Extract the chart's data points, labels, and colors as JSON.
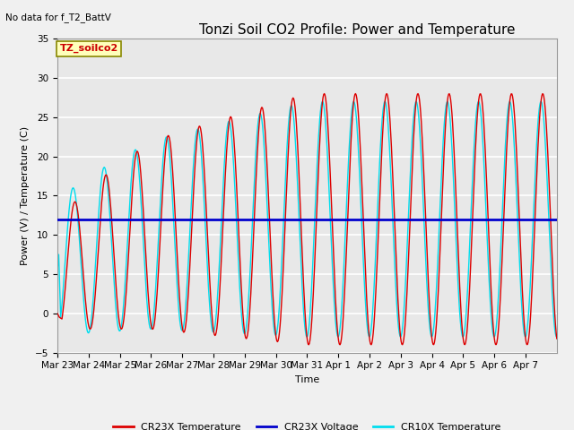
{
  "title": "Tonzi Soil CO2 Profile: Power and Temperature",
  "subtitle": "No data for f_T2_BattV",
  "ylabel": "Power (V) / Temperature (C)",
  "xlabel": "Time",
  "ylim": [
    -5,
    35
  ],
  "voltage_value": 12.0,
  "legend_entries": [
    "CR23X Temperature",
    "CR23X Voltage",
    "CR10X Temperature"
  ],
  "x_tick_labels": [
    "Mar 23",
    "Mar 24",
    "Mar 25",
    "Mar 26",
    "Mar 27",
    "Mar 28",
    "Mar 29",
    "Mar 30",
    "Mar 31",
    "Apr 1",
    "Apr 2",
    "Apr 3",
    "Apr 4",
    "Apr 5",
    "Apr 6",
    "Apr 7"
  ],
  "box_label": "TZ_soilco2",
  "bg_color": "#e8e8e8",
  "fig_bg_color": "#f0f0f0",
  "grid_color": "#ffffff",
  "title_fontsize": 11,
  "label_fontsize": 8,
  "tick_fontsize": 7.5,
  "cr23x_color": "#dd0000",
  "cr10x_color": "#00ddee",
  "voltage_color": "#0000cc",
  "voltage_lw": 2.0,
  "line_lw": 1.0
}
